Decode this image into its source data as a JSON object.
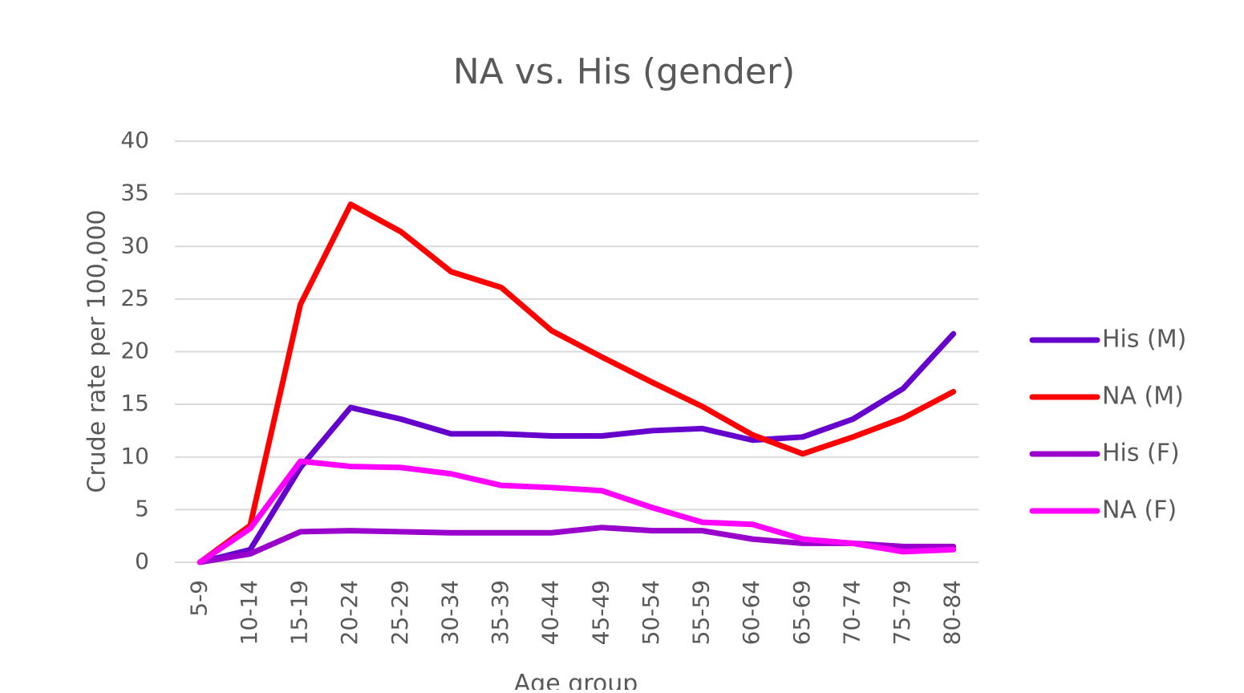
{
  "chart_data": {
    "type": "line",
    "title": "NA vs. His (gender)",
    "x_label": "Age group",
    "y_label": "Crude rate per 100,000",
    "categories": [
      "5-9",
      "10-14",
      "15-19",
      "20-24",
      "25-29",
      "30-34",
      "35-39",
      "40-44",
      "45-49",
      "50-54",
      "55-59",
      "60-64",
      "65-69",
      "70-74",
      "75-79",
      "80-84"
    ],
    "series": [
      {
        "name": "His (M)",
        "color": "#6600cc",
        "values": [
          0,
          1.2,
          9,
          14.7,
          13.6,
          12.2,
          12.2,
          12.0,
          12.0,
          12.5,
          12.7,
          11.6,
          11.9,
          13.6,
          16.5,
          21.7
        ]
      },
      {
        "name": "NA (M)",
        "color": "#ff0000",
        "values": [
          0,
          3.5,
          24.5,
          34,
          31.4,
          27.6,
          26.1,
          22,
          19.5,
          17.1,
          14.8,
          12.1,
          10.3,
          11.9,
          13.7,
          16.2
        ]
      },
      {
        "name": "His (F)",
        "color": "#9900cc",
        "values": [
          0,
          0.8,
          2.9,
          3.0,
          2.9,
          2.8,
          2.8,
          2.8,
          3.3,
          3.0,
          3.0,
          2.2,
          1.8,
          1.8,
          1.5,
          1.5
        ]
      },
      {
        "name": "NA (F)",
        "color": "#ff00ff",
        "values": [
          0,
          3.2,
          9.6,
          9.1,
          9.0,
          8.4,
          7.3,
          7.1,
          6.8,
          5.2,
          3.8,
          3.6,
          2.2,
          1.8,
          1.0,
          1.2
        ]
      }
    ],
    "ylim": [
      0,
      40
    ],
    "yticks": [
      0,
      5,
      10,
      15,
      20,
      25,
      30,
      35,
      40
    ],
    "grid": true,
    "legend": "right"
  }
}
